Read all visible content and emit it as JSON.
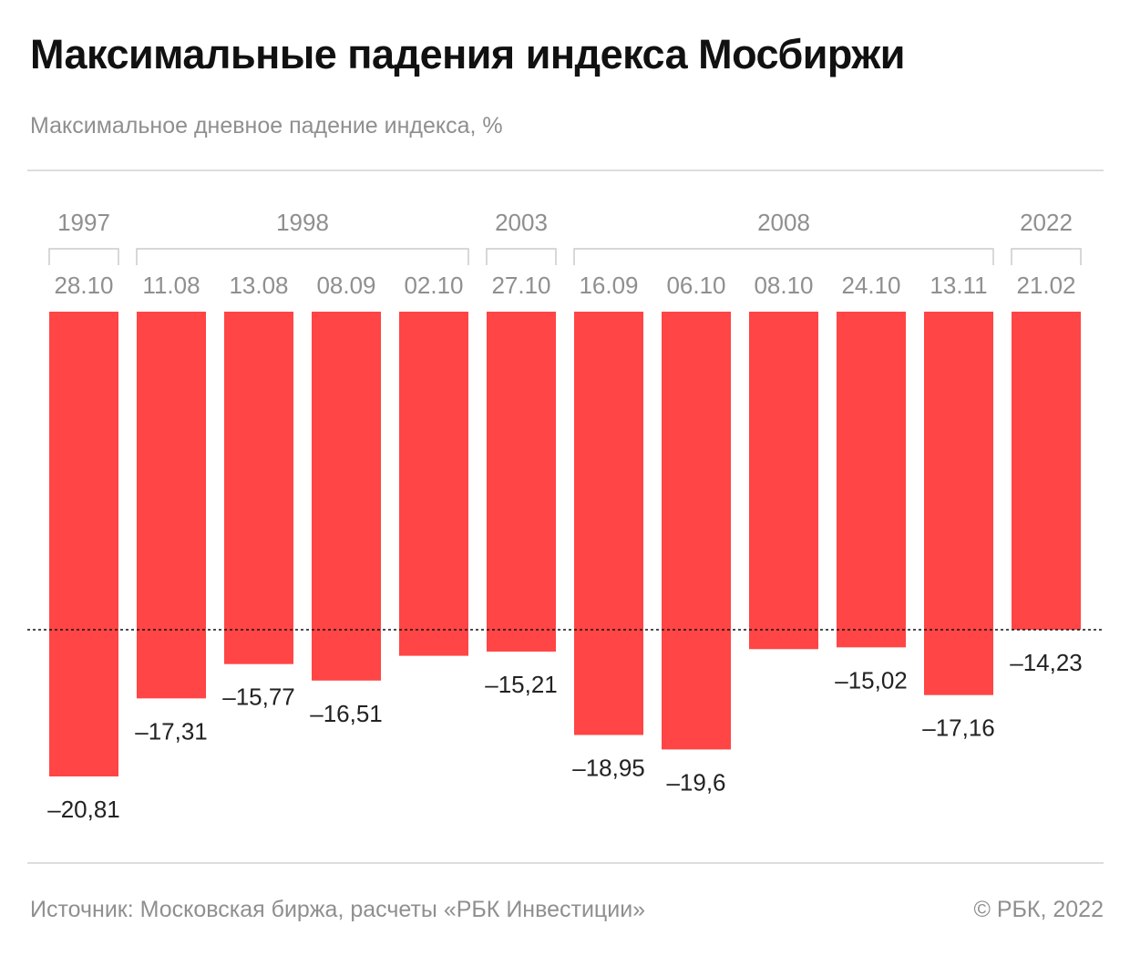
{
  "header": {
    "title": "Максимальные падения индекса Мосбиржи",
    "subtitle": "Максимальное дневное падение индекса, %"
  },
  "footer": {
    "source": "Источник: Московская биржа, расчеты «РБК Инвестиции»",
    "copyright": "© РБК, 2022"
  },
  "colors": {
    "bar": "#ff4545",
    "label_muted": "#8f8f8f",
    "value_text": "#222222",
    "bracket": "#cccccc"
  },
  "chart_data": {
    "type": "bar",
    "title": "Максимальные падения индекса Мосбиржи",
    "subtitle": "Максимальное дневное падение индекса, %",
    "categories": [
      "28.10",
      "11.08",
      "13.08",
      "08.09",
      "02.10",
      "27.10",
      "16.09",
      "06.10",
      "08.10",
      "24.10",
      "13.11",
      "21.02"
    ],
    "year_groups": [
      {
        "year": "1997",
        "start": 0,
        "end": 0
      },
      {
        "year": "1998",
        "start": 1,
        "end": 4
      },
      {
        "year": "2003",
        "start": 5,
        "end": 5
      },
      {
        "year": "2008",
        "start": 6,
        "end": 10
      },
      {
        "year": "2022",
        "start": 11,
        "end": 11
      }
    ],
    "values": [
      -20.81,
      -17.31,
      -15.77,
      -16.51,
      -15.4,
      -15.21,
      -18.95,
      -19.6,
      -15.1,
      -15.02,
      -17.16,
      -14.23
    ],
    "value_labels": [
      "–20,81",
      "–17,31",
      "–15,77",
      "–16,51",
      "",
      "–15,21",
      "–18,95",
      "–19,6",
      "",
      "–15,02",
      "–17,16",
      "–14,23"
    ],
    "reference_line": -14.23,
    "ylim": [
      -21,
      0
    ]
  }
}
